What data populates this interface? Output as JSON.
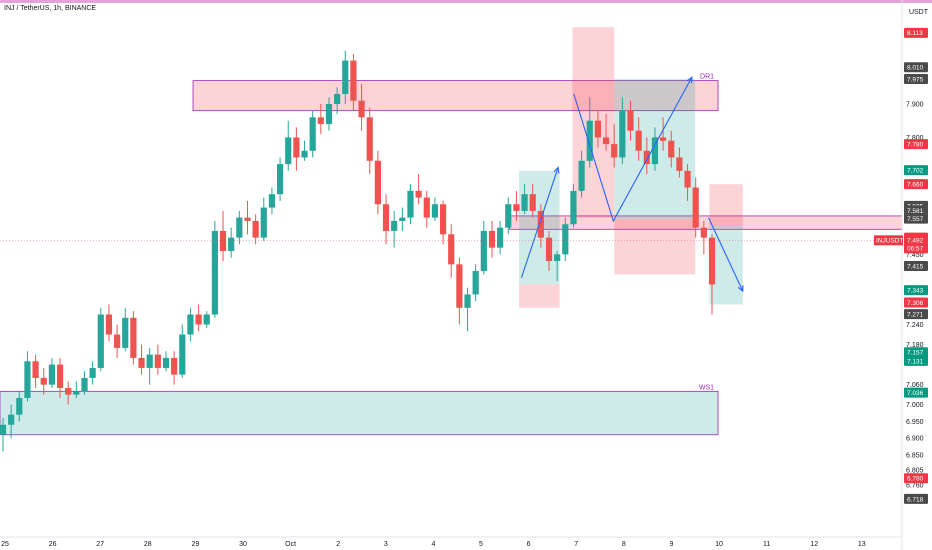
{
  "header": {
    "title": "INJ / TetherUS, 1h, BINANCE",
    "currency": "USDT"
  },
  "colors": {
    "up": "#26a69a",
    "down": "#ef5350",
    "zone_border": "#9c27b0",
    "zone_red": "rgba(242,54,69,0.22)",
    "zone_green": "rgba(38,166,154,0.22)",
    "arrow": "#2962ff",
    "badge_dark": "#131722",
    "badge_red": "#f23645",
    "badge_green": "#089981",
    "badge_gray": "#4a4a4a"
  },
  "chart_data": {
    "type": "candlestick",
    "symbol": "INJUSDT",
    "ylim": [
      6.7,
      8.2
    ],
    "x_ticks": [
      {
        "label": "25",
        "day": 0
      },
      {
        "label": "26",
        "day": 1
      },
      {
        "label": "27",
        "day": 2
      },
      {
        "label": "28",
        "day": 3
      },
      {
        "label": "29",
        "day": 4
      },
      {
        "label": "30",
        "day": 5
      },
      {
        "label": "Oct",
        "day": 6
      },
      {
        "label": "2",
        "day": 7
      },
      {
        "label": "3",
        "day": 8
      },
      {
        "label": "4",
        "day": 9
      },
      {
        "label": "5",
        "day": 10
      },
      {
        "label": "6",
        "day": 11
      },
      {
        "label": "7",
        "day": 12
      },
      {
        "label": "8",
        "day": 13
      },
      {
        "label": "9",
        "day": 14
      },
      {
        "label": "10",
        "day": 15
      },
      {
        "label": "11",
        "day": 16
      },
      {
        "label": "12",
        "day": 17
      },
      {
        "label": "13",
        "day": 18
      }
    ],
    "y_ticks": [
      "7.900",
      "7.800",
      "7.450",
      "7.240",
      "7.180",
      "7.060",
      "7.000",
      "6.950",
      "6.900",
      "6.850",
      "6.805",
      "6.760"
    ],
    "price_badges": [
      {
        "value": "8.113",
        "kind": "red"
      },
      {
        "value": "8.010",
        "kind": "gray"
      },
      {
        "value": "7.975",
        "kind": "gray"
      },
      {
        "value": "7.780",
        "kind": "red"
      },
      {
        "value": "7.702",
        "kind": "green"
      },
      {
        "value": "7.660",
        "kind": "red"
      },
      {
        "value": "7.595",
        "kind": "gray"
      },
      {
        "value": "7.581",
        "kind": "gray"
      },
      {
        "value": "7.557",
        "kind": "gray"
      },
      {
        "value": "7.500",
        "kind": "red"
      },
      {
        "value": "7.492",
        "kind": "red"
      },
      {
        "value": "06:57",
        "kind": "red"
      },
      {
        "value": "7.415",
        "kind": "gray"
      },
      {
        "value": "7.343",
        "kind": "green"
      },
      {
        "value": "7.306",
        "kind": "red"
      },
      {
        "value": "7.271",
        "kind": "gray"
      },
      {
        "value": "7.157",
        "kind": "green"
      },
      {
        "value": "7.131",
        "kind": "green"
      },
      {
        "value": "7.036",
        "kind": "green"
      },
      {
        "value": "6.780",
        "kind": "red"
      },
      {
        "value": "6.718",
        "kind": "gray"
      }
    ],
    "symbol_badge": {
      "label": "INJUSDT",
      "value": "7.492"
    },
    "zones": [
      {
        "kind": "red",
        "label": "DR1",
        "price_top": 7.97,
        "price_bottom": 7.88,
        "day_start": 3.95,
        "day_end": 14.98
      },
      {
        "kind": "green",
        "label": "WS1",
        "price_top": 7.04,
        "price_bottom": 6.91,
        "day_start": -1,
        "day_end": 14.98
      },
      {
        "kind": "red",
        "label": "",
        "price_top": 7.565,
        "price_bottom": 7.525,
        "day_start": 10.6,
        "day_end": 19
      },
      {
        "kind": "red",
        "label": "",
        "price_top": 8.13,
        "price_bottom": 7.56,
        "day_start": 11.92,
        "day_end": 12.8
      },
      {
        "kind": "green",
        "label": "",
        "price_top": 7.975,
        "price_bottom": 7.555,
        "day_start": 12.8,
        "day_end": 14.5
      },
      {
        "kind": "red",
        "label": "",
        "price_top": 7.555,
        "price_bottom": 7.39,
        "day_start": 12.8,
        "day_end": 14.5
      },
      {
        "kind": "green",
        "label": "",
        "price_top": 7.7,
        "price_bottom": 7.36,
        "day_start": 10.8,
        "day_end": 11.65
      },
      {
        "kind": "red",
        "label": "",
        "price_top": 7.36,
        "price_bottom": 7.29,
        "day_start": 10.8,
        "day_end": 11.65
      },
      {
        "kind": "red",
        "label": "",
        "price_top": 7.66,
        "price_bottom": 7.535,
        "day_start": 14.8,
        "day_end": 15.5
      },
      {
        "kind": "green",
        "label": "",
        "price_top": 7.535,
        "price_bottom": 7.3,
        "day_start": 14.8,
        "day_end": 15.5
      }
    ],
    "arrows": [
      {
        "points": [
          [
            10.85,
            7.38
          ],
          [
            11.62,
            7.71
          ]
        ]
      },
      {
        "points": [
          [
            11.95,
            7.93
          ],
          [
            12.78,
            7.55
          ],
          [
            14.43,
            7.98
          ]
        ]
      },
      {
        "points": [
          [
            14.78,
            7.56
          ],
          [
            15.5,
            7.34
          ]
        ]
      }
    ],
    "ohlc": [
      [
        6.91,
        6.96,
        6.86,
        6.94
      ],
      [
        6.94,
        7.0,
        6.9,
        6.97
      ],
      [
        6.97,
        7.04,
        6.95,
        7.02
      ],
      [
        7.02,
        7.16,
        7.01,
        7.13
      ],
      [
        7.13,
        7.15,
        7.05,
        7.08
      ],
      [
        7.08,
        7.11,
        7.03,
        7.06
      ],
      [
        7.06,
        7.14,
        7.05,
        7.12
      ],
      [
        7.12,
        7.14,
        7.02,
        7.05
      ],
      [
        7.05,
        7.07,
        7.0,
        7.03
      ],
      [
        7.03,
        7.07,
        7.02,
        7.04
      ],
      [
        7.04,
        7.1,
        7.03,
        7.08
      ],
      [
        7.08,
        7.13,
        7.06,
        7.11
      ],
      [
        7.11,
        7.29,
        7.1,
        7.27
      ],
      [
        7.27,
        7.3,
        7.19,
        7.21
      ],
      [
        7.21,
        7.24,
        7.14,
        7.17
      ],
      [
        7.17,
        7.29,
        7.16,
        7.26
      ],
      [
        7.26,
        7.28,
        7.12,
        7.14
      ],
      [
        7.14,
        7.18,
        7.09,
        7.11
      ],
      [
        7.11,
        7.17,
        7.06,
        7.15
      ],
      [
        7.15,
        7.18,
        7.09,
        7.11
      ],
      [
        7.11,
        7.16,
        7.1,
        7.14
      ],
      [
        7.14,
        7.16,
        7.06,
        7.09
      ],
      [
        7.09,
        7.24,
        7.08,
        7.21
      ],
      [
        7.21,
        7.29,
        7.19,
        7.27
      ],
      [
        7.27,
        7.3,
        7.22,
        7.24
      ],
      [
        7.24,
        7.28,
        7.23,
        7.27
      ],
      [
        7.27,
        7.55,
        7.26,
        7.52
      ],
      [
        7.52,
        7.58,
        7.43,
        7.46
      ],
      [
        7.46,
        7.53,
        7.44,
        7.5
      ],
      [
        7.5,
        7.58,
        7.48,
        7.56
      ],
      [
        7.56,
        7.61,
        7.51,
        7.55
      ],
      [
        7.55,
        7.57,
        7.48,
        7.5
      ],
      [
        7.5,
        7.62,
        7.49,
        7.59
      ],
      [
        7.59,
        7.65,
        7.57,
        7.63
      ],
      [
        7.63,
        7.74,
        7.61,
        7.72
      ],
      [
        7.72,
        7.85,
        7.7,
        7.8
      ],
      [
        7.8,
        7.83,
        7.7,
        7.74
      ],
      [
        7.74,
        7.79,
        7.73,
        7.76
      ],
      [
        7.76,
        7.88,
        7.74,
        7.86
      ],
      [
        7.86,
        7.9,
        7.81,
        7.84
      ],
      [
        7.84,
        7.92,
        7.82,
        7.9
      ],
      [
        7.9,
        7.95,
        7.87,
        7.93
      ],
      [
        7.93,
        8.06,
        7.9,
        8.03
      ],
      [
        8.03,
        8.05,
        7.88,
        7.91
      ],
      [
        7.91,
        7.96,
        7.82,
        7.86
      ],
      [
        7.86,
        7.89,
        7.69,
        7.73
      ],
      [
        7.73,
        7.76,
        7.57,
        7.6
      ],
      [
        7.6,
        7.63,
        7.48,
        7.52
      ],
      [
        7.52,
        7.58,
        7.47,
        7.55
      ],
      [
        7.55,
        7.59,
        7.52,
        7.56
      ],
      [
        7.56,
        7.66,
        7.54,
        7.64
      ],
      [
        7.64,
        7.69,
        7.6,
        7.62
      ],
      [
        7.62,
        7.64,
        7.53,
        7.56
      ],
      [
        7.56,
        7.62,
        7.55,
        7.6
      ],
      [
        7.6,
        7.61,
        7.48,
        7.51
      ],
      [
        7.51,
        7.54,
        7.38,
        7.42
      ],
      [
        7.42,
        7.44,
        7.24,
        7.29
      ],
      [
        7.29,
        7.35,
        7.22,
        7.33
      ],
      [
        7.33,
        7.42,
        7.31,
        7.4
      ],
      [
        7.4,
        7.55,
        7.39,
        7.52
      ],
      [
        7.52,
        7.55,
        7.44,
        7.47
      ],
      [
        7.47,
        7.55,
        7.45,
        7.53
      ],
      [
        7.53,
        7.62,
        7.51,
        7.6
      ],
      [
        7.6,
        7.64,
        7.55,
        7.58
      ],
      [
        7.58,
        7.66,
        7.57,
        7.63
      ],
      [
        7.63,
        7.66,
        7.56,
        7.58
      ],
      [
        7.58,
        7.6,
        7.47,
        7.5
      ],
      [
        7.5,
        7.52,
        7.4,
        7.43
      ],
      [
        7.43,
        7.46,
        7.37,
        7.45
      ],
      [
        7.45,
        7.56,
        7.43,
        7.54
      ],
      [
        7.54,
        7.66,
        7.53,
        7.64
      ],
      [
        7.64,
        7.76,
        7.62,
        7.73
      ],
      [
        7.73,
        7.92,
        7.71,
        7.85
      ],
      [
        7.85,
        7.88,
        7.77,
        7.8
      ],
      [
        7.8,
        7.87,
        7.76,
        7.78
      ],
      [
        7.78,
        7.84,
        7.71,
        7.74
      ],
      [
        7.74,
        7.92,
        7.72,
        7.88
      ],
      [
        7.88,
        7.91,
        7.79,
        7.82
      ],
      [
        7.82,
        7.86,
        7.73,
        7.76
      ],
      [
        7.76,
        7.8,
        7.69,
        7.72
      ],
      [
        7.72,
        7.83,
        7.7,
        7.8
      ],
      [
        7.8,
        7.86,
        7.76,
        7.79
      ],
      [
        7.79,
        7.82,
        7.71,
        7.74
      ],
      [
        7.74,
        7.77,
        7.68,
        7.7
      ],
      [
        7.7,
        7.72,
        7.61,
        7.65
      ],
      [
        7.65,
        7.68,
        7.5,
        7.53
      ],
      [
        7.53,
        7.55,
        7.45,
        7.5
      ],
      [
        7.5,
        7.51,
        7.27,
        7.36
      ]
    ]
  }
}
